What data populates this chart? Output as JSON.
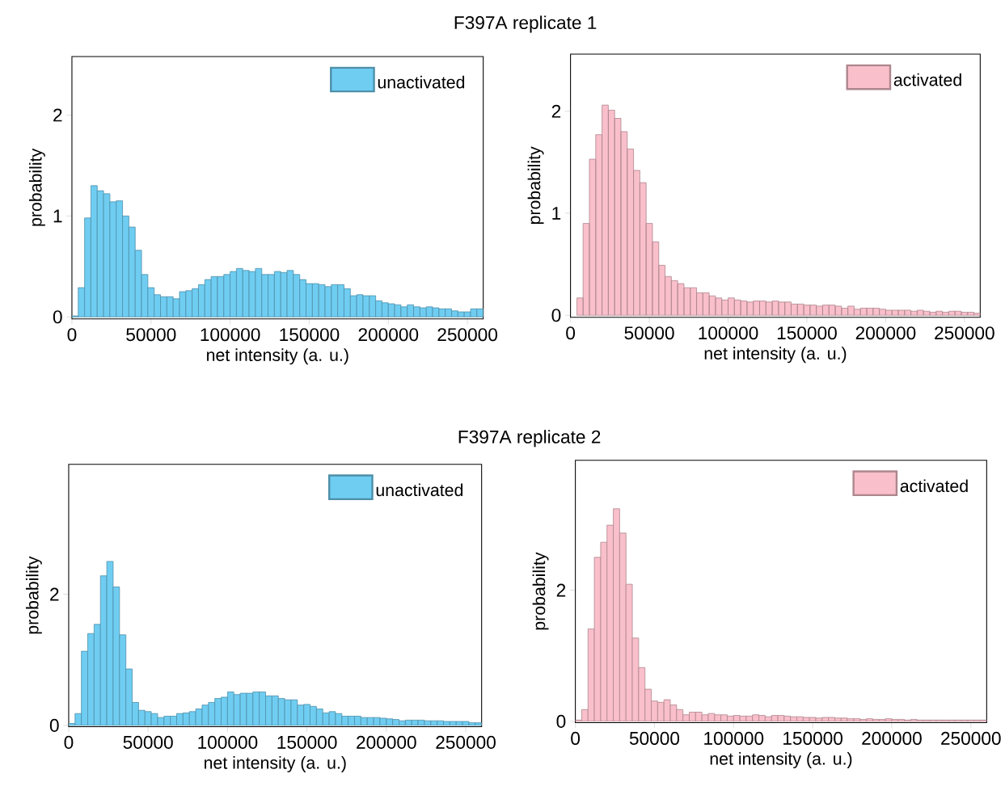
{
  "chart_data": [
    {
      "type": "histogram",
      "title": "F397A replicate 1",
      "xlabel": "net intensity (a. u.)",
      "ylabel": "probability",
      "bins": [
        0,
        4000,
        8000,
        12000,
        16000,
        20000,
        24000,
        28000,
        32000,
        36000,
        40000,
        44000,
        48000,
        52000,
        56000,
        60000,
        64000,
        68000,
        72000,
        76000,
        80000,
        84000,
        88000,
        92000,
        96000,
        100000,
        104000,
        108000,
        112000,
        116000,
        120000,
        124000,
        128000,
        132000,
        136000,
        140000,
        144000,
        148000,
        152000,
        156000,
        160000,
        164000,
        168000,
        172000,
        176000,
        180000,
        184000,
        188000,
        192000,
        196000,
        200000,
        204000,
        208000,
        212000,
        216000,
        220000,
        224000,
        228000,
        232000,
        236000,
        240000,
        244000,
        248000,
        252000,
        256000,
        260000
      ],
      "series": [
        {
          "name": "unactivated",
          "color": "#6fcdf2",
          "values": [
            0.01,
            0.29,
            0.98,
            1.3,
            1.25,
            1.22,
            1.14,
            1.15,
            1.0,
            0.89,
            0.66,
            0.42,
            0.29,
            0.22,
            0.2,
            0.2,
            0.18,
            0.25,
            0.26,
            0.28,
            0.32,
            0.37,
            0.4,
            0.4,
            0.42,
            0.45,
            0.48,
            0.46,
            0.45,
            0.48,
            0.42,
            0.42,
            0.45,
            0.44,
            0.46,
            0.42,
            0.37,
            0.33,
            0.33,
            0.32,
            0.3,
            0.32,
            0.32,
            0.28,
            0.21,
            0.22,
            0.21,
            0.21,
            0.16,
            0.14,
            0.13,
            0.12,
            0.1,
            0.12,
            0.1,
            0.09,
            0.1,
            0.09,
            0.08,
            0.08,
            0.06,
            0.05,
            0.05,
            0.08,
            0.08
          ]
        }
      ],
      "xlim": [
        0,
        260000
      ],
      "ylim": [
        -0.02,
        2.58
      ],
      "xticks": [
        0,
        50000,
        100000,
        150000,
        200000,
        250000
      ],
      "yticks": [
        0,
        1,
        2
      ],
      "legend": "top right"
    },
    {
      "type": "histogram",
      "xlabel": "net intensity (a. u.)",
      "ylabel": "probability",
      "bins": [
        0,
        4000,
        8000,
        12000,
        16000,
        20000,
        24000,
        28000,
        32000,
        36000,
        40000,
        44000,
        48000,
        52000,
        56000,
        60000,
        64000,
        68000,
        72000,
        76000,
        80000,
        84000,
        88000,
        92000,
        96000,
        100000,
        104000,
        108000,
        112000,
        116000,
        120000,
        124000,
        128000,
        132000,
        136000,
        140000,
        144000,
        148000,
        152000,
        156000,
        160000,
        164000,
        168000,
        172000,
        176000,
        180000,
        184000,
        188000,
        192000,
        196000,
        200000,
        204000,
        208000,
        212000,
        216000,
        220000,
        224000,
        228000,
        232000,
        236000,
        240000,
        244000,
        248000,
        252000,
        256000,
        260000
      ],
      "series": [
        {
          "name": "activated",
          "color": "#f9bfcb",
          "values": [
            null,
            0.17,
            0.9,
            1.53,
            1.77,
            2.06,
            2.01,
            1.93,
            1.8,
            1.63,
            1.42,
            1.3,
            0.9,
            0.72,
            0.49,
            0.38,
            0.34,
            0.31,
            0.27,
            0.27,
            0.22,
            0.22,
            0.19,
            0.17,
            0.15,
            0.17,
            0.15,
            0.14,
            0.13,
            0.14,
            0.14,
            0.13,
            0.14,
            0.13,
            0.13,
            0.11,
            0.11,
            0.1,
            0.1,
            0.09,
            0.1,
            0.1,
            0.09,
            0.07,
            0.09,
            0.06,
            0.07,
            0.07,
            0.07,
            0.06,
            0.05,
            0.05,
            0.05,
            0.05,
            0.04,
            0.05,
            0.04,
            0.03,
            0.04,
            0.03,
            0.04,
            0.04,
            0.03,
            0.03,
            0.02
          ]
        }
      ],
      "xlim": [
        0,
        260000
      ],
      "ylim": [
        -0.02,
        2.56
      ],
      "xticks": [
        0,
        50000,
        100000,
        150000,
        200000,
        250000
      ],
      "yticks": [
        0,
        1,
        2
      ],
      "legend": "top right"
    },
    {
      "type": "histogram",
      "title": "F397A replicate 2",
      "xlabel": "net intensity (a. u.)",
      "ylabel": "probability",
      "bins": [
        0,
        4000,
        8000,
        12000,
        16000,
        20000,
        24000,
        28000,
        32000,
        36000,
        40000,
        44000,
        48000,
        52000,
        56000,
        60000,
        64000,
        68000,
        72000,
        76000,
        80000,
        84000,
        88000,
        92000,
        96000,
        100000,
        104000,
        108000,
        112000,
        116000,
        120000,
        124000,
        128000,
        132000,
        136000,
        140000,
        144000,
        148000,
        152000,
        156000,
        160000,
        164000,
        168000,
        172000,
        176000,
        180000,
        184000,
        188000,
        192000,
        196000,
        200000,
        204000,
        208000,
        212000,
        216000,
        220000,
        224000,
        228000,
        232000,
        236000,
        240000,
        244000,
        248000,
        252000,
        256000,
        260000
      ],
      "series": [
        {
          "name": "unactivated",
          "color": "#6fcdf2",
          "values": [
            0.03,
            0.18,
            1.13,
            1.4,
            1.54,
            2.28,
            2.5,
            2.11,
            1.38,
            0.86,
            0.35,
            0.23,
            0.21,
            0.18,
            0.12,
            0.14,
            0.14,
            0.18,
            0.19,
            0.21,
            0.25,
            0.31,
            0.35,
            0.41,
            0.43,
            0.51,
            0.47,
            0.49,
            0.49,
            0.51,
            0.51,
            0.45,
            0.45,
            0.41,
            0.39,
            0.39,
            0.31,
            0.32,
            0.29,
            0.25,
            0.19,
            0.21,
            0.18,
            0.14,
            0.14,
            0.14,
            0.12,
            0.12,
            0.12,
            0.11,
            0.1,
            0.09,
            0.07,
            0.08,
            0.08,
            0.08,
            0.07,
            0.07,
            0.07,
            0.06,
            0.06,
            0.06,
            0.06,
            0.04,
            0.04
          ]
        }
      ],
      "xlim": [
        0,
        260000
      ],
      "ylim": [
        -0.02,
        3.98
      ],
      "xticks": [
        0,
        50000,
        100000,
        150000,
        200000,
        250000
      ],
      "yticks": [
        0,
        2
      ],
      "legend": "top right"
    },
    {
      "type": "histogram",
      "xlabel": "net intensity (a. u.)",
      "ylabel": "probability",
      "bins": [
        0,
        4000,
        8000,
        12000,
        16000,
        20000,
        24000,
        28000,
        32000,
        36000,
        40000,
        44000,
        48000,
        52000,
        56000,
        60000,
        64000,
        68000,
        72000,
        76000,
        80000,
        84000,
        88000,
        92000,
        96000,
        100000,
        104000,
        108000,
        112000,
        116000,
        120000,
        124000,
        128000,
        132000,
        136000,
        140000,
        144000,
        148000,
        152000,
        156000,
        160000,
        164000,
        168000,
        172000,
        176000,
        180000,
        184000,
        188000,
        192000,
        196000,
        200000,
        204000,
        208000,
        212000,
        216000,
        220000,
        224000,
        228000,
        232000,
        236000,
        240000,
        244000,
        248000,
        252000,
        256000,
        260000
      ],
      "series": [
        {
          "name": "activated",
          "color": "#f9bfcb",
          "values": [
            0.02,
            0.18,
            1.41,
            2.5,
            2.73,
            2.99,
            3.24,
            2.87,
            2.09,
            1.27,
            0.82,
            0.49,
            0.31,
            0.29,
            0.33,
            0.25,
            0.18,
            0.1,
            0.14,
            0.14,
            0.1,
            0.12,
            0.1,
            0.1,
            0.08,
            0.09,
            0.08,
            0.08,
            0.1,
            0.09,
            0.07,
            0.09,
            0.09,
            0.08,
            0.07,
            0.07,
            0.06,
            0.06,
            0.05,
            0.06,
            0.06,
            0.05,
            0.05,
            0.04,
            0.04,
            0.03,
            0.04,
            0.03,
            0.03,
            0.04,
            0.03,
            0.03,
            0.02,
            0.03,
            0.02,
            0.02,
            0.02,
            0.02,
            0.02,
            0.02,
            0.02,
            0.02,
            0.02,
            0.02,
            0.02
          ]
        }
      ],
      "xlim": [
        0,
        260000
      ],
      "ylim": [
        -0.02,
        3.98
      ],
      "xticks": [
        0,
        50000,
        100000,
        150000,
        200000,
        250000
      ],
      "yticks": [
        0,
        2
      ],
      "legend": "top right"
    }
  ]
}
